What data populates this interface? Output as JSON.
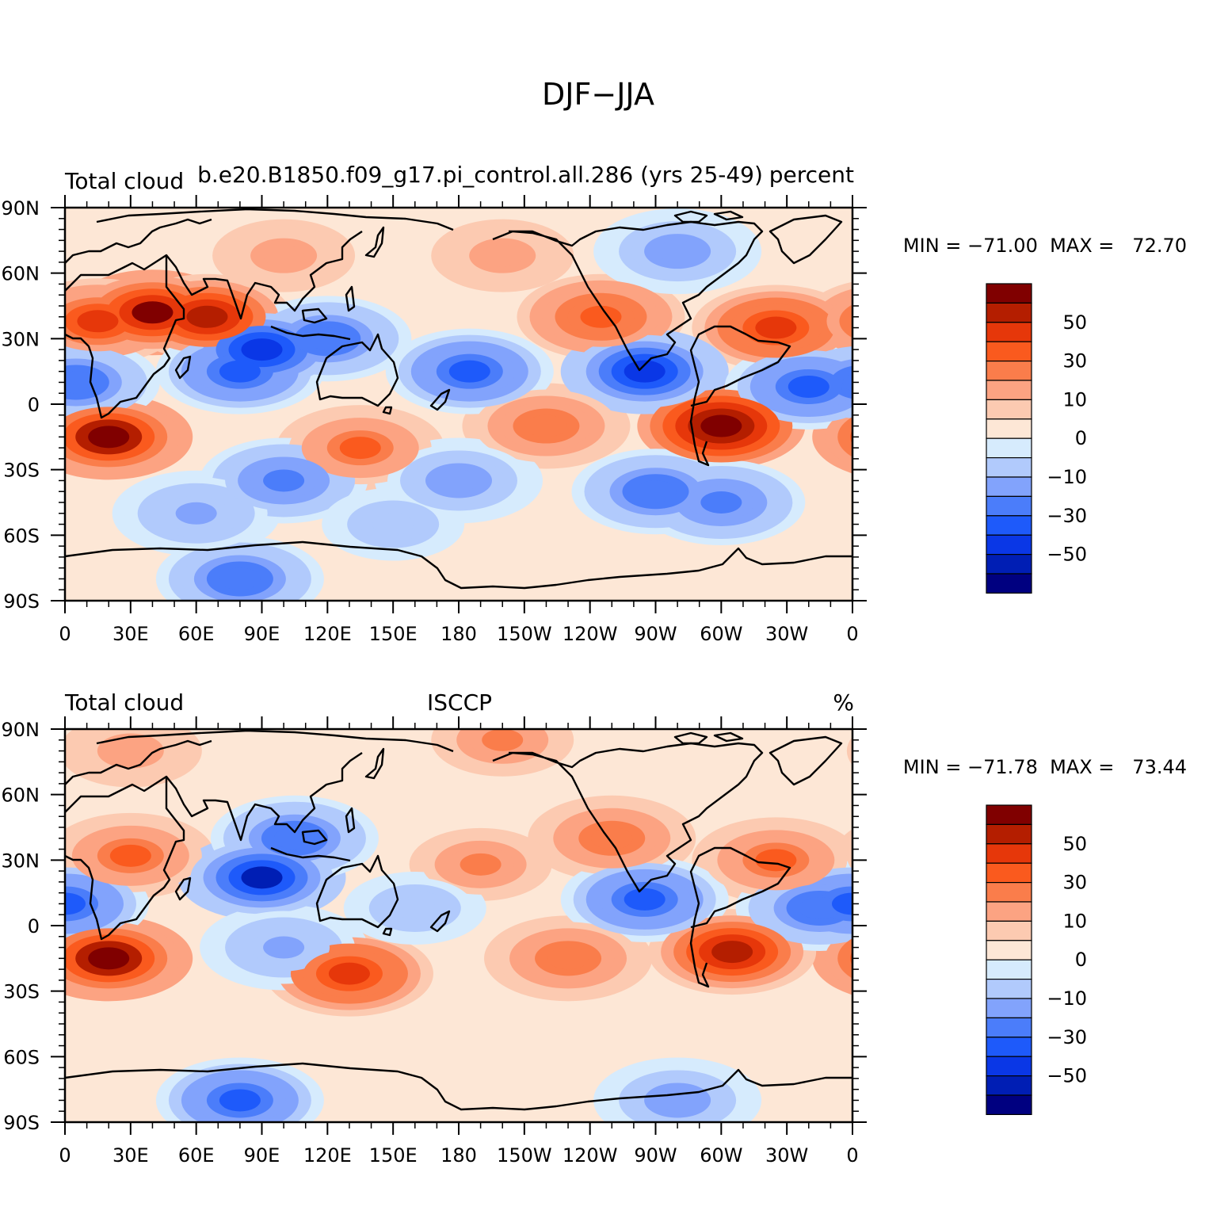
{
  "figure": {
    "title": "DJF−JJA"
  },
  "lat_labels": [
    "90N",
    "60N",
    "30N",
    "0",
    "30S",
    "60S",
    "90S"
  ],
  "lon_labels": [
    "0",
    "30E",
    "60E",
    "90E",
    "120E",
    "150E",
    "180",
    "150W",
    "120W",
    "90W",
    "60W",
    "30W",
    "0"
  ],
  "legend": {
    "labels": [
      "50",
      "30",
      "10",
      "0",
      "−10",
      "−30",
      "−50"
    ],
    "colors": [
      "#800000",
      "#b41e00",
      "#e6370a",
      "#fa5a1e",
      "#fa7d4b",
      "#fca382",
      "#fccab1",
      "#fde7d6",
      "#d6ebfd",
      "#b1cafc",
      "#82a3fc",
      "#4b7dfa",
      "#1e5afa",
      "#0a37e6",
      "#001eb4",
      "#000080"
    ]
  },
  "panels": [
    {
      "left_text": "Total cloud",
      "center_text": "b.e20.B1850.f09_g17.pi_control.all.286 (yrs 25-49)",
      "right_text": "percent",
      "min_max": "MIN = −71.00  MAX =   72.70",
      "blobs": [
        {
          "lon": 40,
          "lat": 42,
          "value": 60
        },
        {
          "lon": 65,
          "lat": 40,
          "value": 50
        },
        {
          "lon": 15,
          "lat": 38,
          "value": 40
        },
        {
          "lon": 20,
          "lat": -15,
          "value": 65
        },
        {
          "lon": 300,
          "lat": -10,
          "value": 68
        },
        {
          "lon": 325,
          "lat": 35,
          "value": 45
        },
        {
          "lon": 245,
          "lat": 40,
          "value": 35
        },
        {
          "lon": 220,
          "lat": -10,
          "value": 28
        },
        {
          "lon": 135,
          "lat": -20,
          "value": 30
        },
        {
          "lon": 90,
          "lat": 25,
          "value": -55
        },
        {
          "lon": 120,
          "lat": 30,
          "value": -40
        },
        {
          "lon": 80,
          "lat": 15,
          "value": -45
        },
        {
          "lon": 185,
          "lat": 15,
          "value": -45
        },
        {
          "lon": 265,
          "lat": 15,
          "value": -60
        },
        {
          "lon": 340,
          "lat": 8,
          "value": -50
        },
        {
          "lon": 5,
          "lat": 10,
          "value": -40
        },
        {
          "lon": 270,
          "lat": -40,
          "value": -40
        },
        {
          "lon": 300,
          "lat": -45,
          "value": -35
        },
        {
          "lon": 100,
          "lat": -35,
          "value": -35
        },
        {
          "lon": 180,
          "lat": -35,
          "value": -30
        },
        {
          "lon": 80,
          "lat": -80,
          "value": -40
        },
        {
          "lon": 280,
          "lat": 70,
          "value": -30
        },
        {
          "lon": 100,
          "lat": 68,
          "value": 15
        },
        {
          "lon": 200,
          "lat": 68,
          "value": 15
        },
        {
          "lon": 150,
          "lat": -55,
          "value": -20
        },
        {
          "lon": 60,
          "lat": -50,
          "value": -25
        }
      ]
    },
    {
      "left_text": "Total cloud",
      "center_text": "ISCCP",
      "right_text": "%",
      "min_max": "MIN = −71.78  MAX =   73.44",
      "blobs": [
        {
          "lon": 20,
          "lat": -15,
          "value": 65
        },
        {
          "lon": 305,
          "lat": -12,
          "value": 55
        },
        {
          "lon": 130,
          "lat": -22,
          "value": 45
        },
        {
          "lon": 30,
          "lat": 32,
          "value": 30
        },
        {
          "lon": 325,
          "lat": 30,
          "value": 30
        },
        {
          "lon": 250,
          "lat": 40,
          "value": 25
        },
        {
          "lon": 230,
          "lat": -15,
          "value": 28
        },
        {
          "lon": 190,
          "lat": 28,
          "value": 22
        },
        {
          "lon": 90,
          "lat": 22,
          "value": -62
        },
        {
          "lon": 105,
          "lat": 40,
          "value": -40
        },
        {
          "lon": 0,
          "lat": 10,
          "value": -50
        },
        {
          "lon": 265,
          "lat": 12,
          "value": -45
        },
        {
          "lon": 345,
          "lat": 8,
          "value": -40
        },
        {
          "lon": 80,
          "lat": -80,
          "value": -45
        },
        {
          "lon": 280,
          "lat": -80,
          "value": -30
        },
        {
          "lon": 160,
          "lat": 8,
          "value": -20
        },
        {
          "lon": 200,
          "lat": 85,
          "value": 20
        },
        {
          "lon": 100,
          "lat": -10,
          "value": -25
        },
        {
          "lon": 30,
          "lat": 80,
          "value": 15
        }
      ]
    }
  ]
}
